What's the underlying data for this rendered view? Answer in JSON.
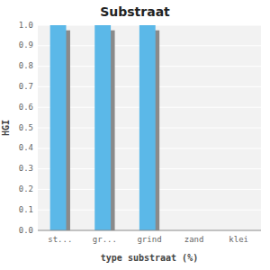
{
  "chart_data": {
    "type": "bar",
    "title": "Substraat",
    "xlabel": "type substraat (%)",
    "ylabel": "HGI",
    "categories": [
      "st...",
      "gr...",
      "grind",
      "zand",
      "klei"
    ],
    "series": [
      {
        "color": "#5bb8e8",
        "values": [
          1.0,
          1.0,
          1.0,
          null,
          null
        ]
      },
      {
        "color": "#8a8a8a",
        "values": [
          0.975,
          0.975,
          0.975,
          null,
          null
        ]
      }
    ],
    "ylim": [
      0.0,
      1.0
    ],
    "yticks": [
      {
        "value": 0.0,
        "label": "0.0"
      },
      0.1,
      0.2,
      0.3,
      0.4,
      0.5,
      0.6,
      0.7,
      0.8,
      0.9,
      {
        "value": 1.0,
        "label": "1.0"
      }
    ],
    "grid": true
  }
}
